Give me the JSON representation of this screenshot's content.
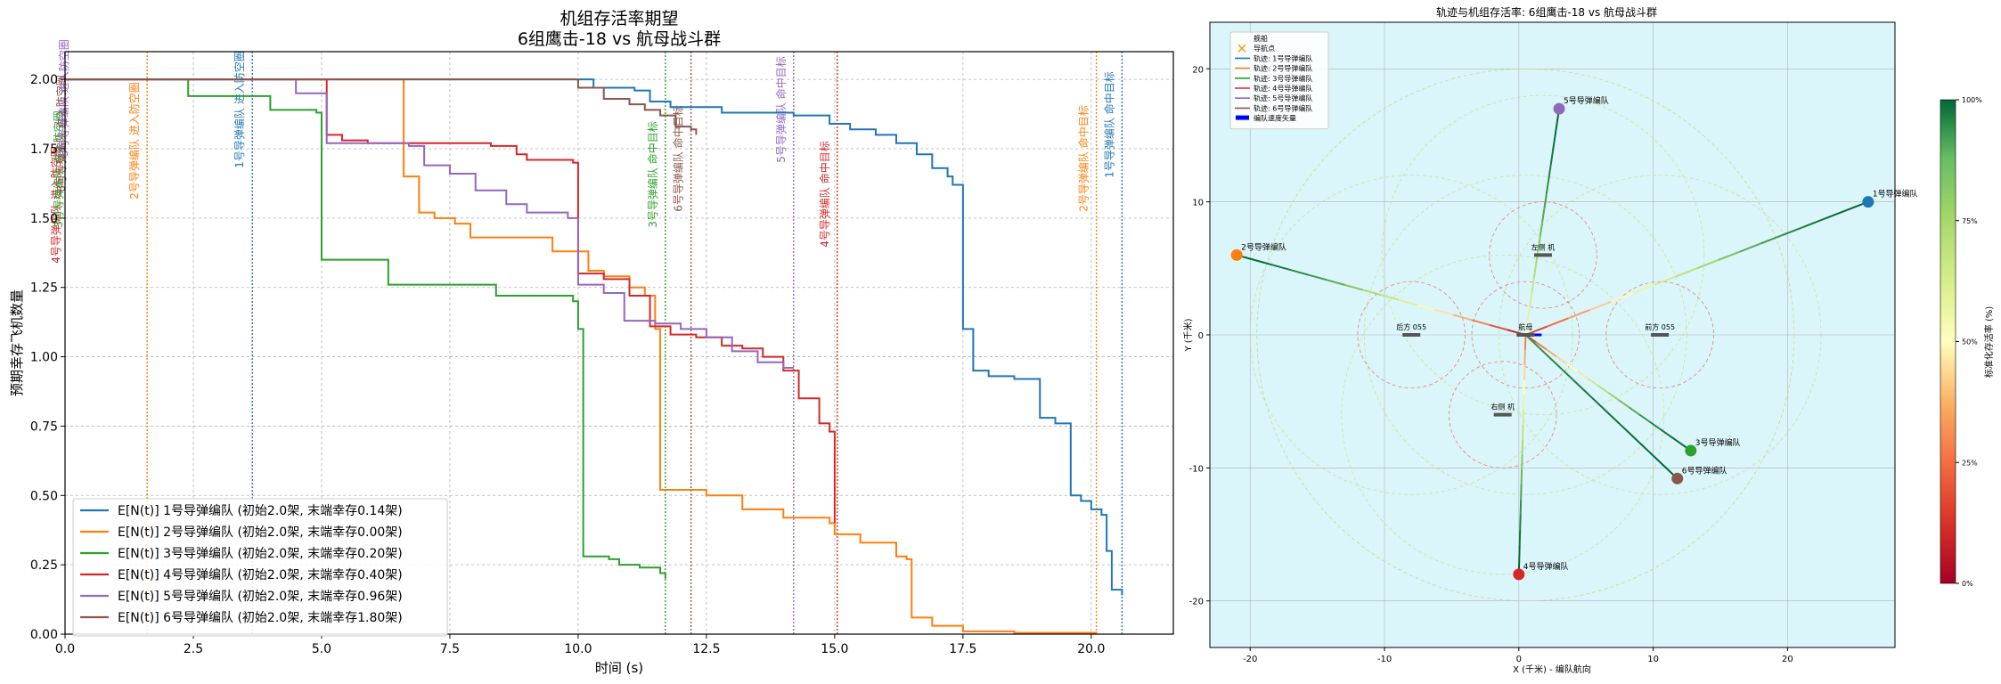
{
  "chart_data": [
    {
      "type": "line",
      "title": "机组存活率期望",
      "subtitle": "6组鹰击-18 vs 航母战斗群",
      "xlabel": "时间 (s)",
      "ylabel": "预期幸存飞机数量",
      "xlim": [
        0,
        21.6
      ],
      "ylim": [
        0,
        2.1
      ],
      "xticks": [
        0,
        2.5,
        5,
        7.5,
        10,
        12.5,
        15,
        17.5,
        20
      ],
      "yticks": [
        0,
        0.25,
        0.5,
        0.75,
        1.0,
        1.25,
        1.5,
        1.75,
        2.0
      ],
      "grid": true,
      "legend_position": "lower-left",
      "series": [
        {
          "name": "E[N(t)] 1号导弹编队 (初始2.0架, 末端幸存0.14架)",
          "color": "#1f77b4",
          "points": [
            [
              0,
              2.0
            ],
            [
              10.1,
              2.0
            ],
            [
              10.3,
              1.97
            ],
            [
              11.1,
              1.96
            ],
            [
              11.4,
              1.92
            ],
            [
              11.8,
              1.9
            ],
            [
              12.8,
              1.88
            ],
            [
              14.2,
              1.87
            ],
            [
              14.9,
              1.84
            ],
            [
              15.3,
              1.82
            ],
            [
              15.8,
              1.8
            ],
            [
              16.2,
              1.77
            ],
            [
              16.6,
              1.73
            ],
            [
              16.9,
              1.68
            ],
            [
              17.2,
              1.65
            ],
            [
              17.3,
              1.62
            ],
            [
              17.5,
              1.1
            ],
            [
              17.7,
              0.95
            ],
            [
              18.0,
              0.93
            ],
            [
              18.5,
              0.92
            ],
            [
              19.0,
              0.78
            ],
            [
              19.3,
              0.76
            ],
            [
              19.6,
              0.5
            ],
            [
              19.8,
              0.48
            ],
            [
              20.0,
              0.45
            ],
            [
              20.2,
              0.43
            ],
            [
              20.3,
              0.3
            ],
            [
              20.4,
              0.16
            ],
            [
              20.6,
              0.14
            ]
          ]
        },
        {
          "name": "E[N(t)] 2号导弹编队 (初始2.0架, 末端幸存0.00架)",
          "color": "#ff7f0e",
          "points": [
            [
              0,
              2.0
            ],
            [
              6.5,
              2.0
            ],
            [
              6.6,
              1.65
            ],
            [
              6.9,
              1.52
            ],
            [
              7.2,
              1.5
            ],
            [
              7.6,
              1.48
            ],
            [
              7.9,
              1.43
            ],
            [
              9.0,
              1.43
            ],
            [
              9.5,
              1.38
            ],
            [
              10.2,
              1.31
            ],
            [
              10.5,
              1.29
            ],
            [
              11.0,
              1.25
            ],
            [
              11.3,
              1.22
            ],
            [
              11.5,
              1.1
            ],
            [
              11.6,
              0.52
            ],
            [
              12.5,
              0.5
            ],
            [
              13.2,
              0.45
            ],
            [
              14.0,
              0.42
            ],
            [
              14.9,
              0.4
            ],
            [
              15.0,
              0.36
            ],
            [
              15.5,
              0.33
            ],
            [
              16.2,
              0.28
            ],
            [
              16.4,
              0.27
            ],
            [
              16.5,
              0.06
            ],
            [
              16.9,
              0.03
            ],
            [
              17.5,
              0.01
            ],
            [
              18.5,
              0.005
            ],
            [
              20.1,
              0.0
            ]
          ]
        },
        {
          "name": "E[N(t)] 3号导弹编队 (初始2.0架, 末端幸存0.20架)",
          "color": "#2ca02c",
          "points": [
            [
              0,
              2.0
            ],
            [
              2.3,
              2.0
            ],
            [
              2.4,
              1.94
            ],
            [
              3.6,
              1.94
            ],
            [
              4.0,
              1.89
            ],
            [
              4.9,
              1.88
            ],
            [
              5.0,
              1.35
            ],
            [
              6.1,
              1.35
            ],
            [
              6.3,
              1.26
            ],
            [
              8.0,
              1.26
            ],
            [
              8.4,
              1.22
            ],
            [
              9.9,
              1.2
            ],
            [
              10.0,
              1.1
            ],
            [
              10.1,
              0.28
            ],
            [
              10.6,
              0.27
            ],
            [
              10.8,
              0.25
            ],
            [
              11.2,
              0.24
            ],
            [
              11.6,
              0.22
            ],
            [
              11.7,
              0.2
            ]
          ]
        },
        {
          "name": "E[N(t)] 4号导弹编队 (初始2.0架, 末端幸存0.40架)",
          "color": "#d62728",
          "points": [
            [
              0,
              2.0
            ],
            [
              5.0,
              2.0
            ],
            [
              5.1,
              1.8
            ],
            [
              5.4,
              1.78
            ],
            [
              5.9,
              1.77
            ],
            [
              7.3,
              1.77
            ],
            [
              8.3,
              1.76
            ],
            [
              8.8,
              1.73
            ],
            [
              9.0,
              1.71
            ],
            [
              9.9,
              1.7
            ],
            [
              10.0,
              1.3
            ],
            [
              10.5,
              1.28
            ],
            [
              11.0,
              1.22
            ],
            [
              11.4,
              1.11
            ],
            [
              11.8,
              1.08
            ],
            [
              12.3,
              1.07
            ],
            [
              12.8,
              1.04
            ],
            [
              13.2,
              1.03
            ],
            [
              13.6,
              1.0
            ],
            [
              14.0,
              0.95
            ],
            [
              14.3,
              0.85
            ],
            [
              14.7,
              0.76
            ],
            [
              14.9,
              0.73
            ],
            [
              15.0,
              0.4
            ]
          ]
        },
        {
          "name": "E[N(t)] 5号导弹编队 (初始2.0架, 末端幸存0.96架)",
          "color": "#9467bd",
          "points": [
            [
              0,
              2.0
            ],
            [
              4.4,
              2.0
            ],
            [
              4.5,
              1.95
            ],
            [
              5.0,
              1.95
            ],
            [
              5.1,
              1.77
            ],
            [
              6.7,
              1.76
            ],
            [
              7.0,
              1.69
            ],
            [
              7.5,
              1.66
            ],
            [
              8.0,
              1.6
            ],
            [
              8.6,
              1.55
            ],
            [
              9.0,
              1.52
            ],
            [
              9.8,
              1.5
            ],
            [
              10.0,
              1.26
            ],
            [
              10.5,
              1.23
            ],
            [
              10.9,
              1.13
            ],
            [
              11.5,
              1.12
            ],
            [
              12.0,
              1.1
            ],
            [
              12.5,
              1.07
            ],
            [
              13.0,
              1.02
            ],
            [
              13.5,
              0.98
            ],
            [
              14.0,
              0.96
            ],
            [
              14.2,
              0.96
            ]
          ]
        },
        {
          "name": "E[N(t)] 6号导弹编队 (初始2.0架, 末端幸存1.80架)",
          "color": "#8c564b",
          "points": [
            [
              0,
              2.0
            ],
            [
              9.9,
              2.0
            ],
            [
              10.0,
              1.97
            ],
            [
              10.5,
              1.93
            ],
            [
              11.0,
              1.91
            ],
            [
              11.3,
              1.89
            ],
            [
              11.6,
              1.87
            ],
            [
              11.9,
              1.83
            ],
            [
              12.2,
              1.82
            ],
            [
              12.3,
              1.8
            ]
          ]
        }
      ],
      "event_lines": [
        {
          "x": 1.6,
          "label": "2号导弹编队 进入防空圈",
          "color": "#ff7f0e"
        },
        {
          "x": 3.65,
          "label": "1号导弹编队 进入防空圈",
          "color": "#1f77b4"
        },
        {
          "x": 11.7,
          "label": "3号导弹编队 命中目标",
          "color": "#2ca02c"
        },
        {
          "x": 12.2,
          "label": "6号导弹编队 命中目标",
          "color": "#8c564b"
        },
        {
          "x": 14.2,
          "label": "5号导弹编队 命中目标",
          "color": "#9467bd"
        },
        {
          "x": 15.05,
          "label": "4号导弹编队 命中目标",
          "color": "#d62728"
        },
        {
          "x": 20.1,
          "label": "2号导弹编队 命中目标",
          "color": "#ff7f0e"
        },
        {
          "x": 20.6,
          "label": "1号导弹编队 命中目标",
          "color": "#1f77b4"
        }
      ],
      "stacked_labels_x0": [
        {
          "text": "4号导弹编队 进入防空圈",
          "color": "#d62728"
        },
        {
          "text": "3号导弹编队 进入防空圈",
          "color": "#2ca02c"
        },
        {
          "text": "6号导弹编队 进入防空圈",
          "color": "#8c564b"
        },
        {
          "text": "5号导弹编队 进入防空圈",
          "color": "#9467bd"
        }
      ]
    },
    {
      "type": "scatter",
      "title": "轨迹与机组存活率: 6组鹰击-18 vs 航母战斗群",
      "xlabel": "X (千米) - 编队航向",
      "ylabel": "Y (千米)",
      "xlim": [
        -23,
        28
      ],
      "ylim": [
        -23.5,
        23.5
      ],
      "xticks": [
        -20,
        -10,
        0,
        10,
        20
      ],
      "yticks": [
        -20,
        -10,
        0,
        10,
        20
      ],
      "background": "#dbf6fa",
      "legend_position": "top-left",
      "legend": [
        {
          "label": "舰船",
          "kind": "none"
        },
        {
          "label": "导航点",
          "kind": "x",
          "color": "#ff9900"
        },
        {
          "label": "轨迹: 1号导弹编队",
          "kind": "line",
          "color": "#1f77b4"
        },
        {
          "label": "轨迹: 2号导弹编队",
          "kind": "line",
          "color": "#ff7f0e"
        },
        {
          "label": "轨迹: 3号导弹编队",
          "kind": "line",
          "color": "#2ca02c"
        },
        {
          "label": "轨迹: 4号导弹编队",
          "kind": "line",
          "color": "#d62728"
        },
        {
          "label": "轨迹: 5号导弹编队",
          "kind": "line",
          "color": "#9467bd"
        },
        {
          "label": "轨迹: 6号导弹编队",
          "kind": "line",
          "color": "#8c564b"
        },
        {
          "label": "编队速度矢量",
          "kind": "box",
          "color": "#0000ff"
        }
      ],
      "ships": [
        {
          "label": "航母",
          "x": 0.5,
          "y": 0
        },
        {
          "label": "左侧 机",
          "x": 1.8,
          "y": 6
        },
        {
          "label": "后方 055",
          "x": -8,
          "y": 0
        },
        {
          "label": "前方 055",
          "x": 10.5,
          "y": 0
        },
        {
          "label": "右侧 机",
          "x": -1.2,
          "y": -6
        }
      ],
      "formations": [
        {
          "label": "1号导弹编队",
          "color": "#1f77b4",
          "start": [
            26,
            10
          ],
          "end": [
            0.5,
            0
          ],
          "survival": 0.07
        },
        {
          "label": "2号导弹编队",
          "color": "#ff7f0e",
          "start": [
            -21,
            6
          ],
          "end": [
            0.5,
            0
          ],
          "survival": 0.0
        },
        {
          "label": "3号导弹编队",
          "color": "#2ca02c",
          "start": [
            12.8,
            -8.7
          ],
          "end": [
            0.5,
            0
          ],
          "survival": 0.1
        },
        {
          "label": "4号导弹编队",
          "color": "#d62728",
          "start": [
            0,
            -18
          ],
          "end": [
            0.5,
            0
          ],
          "survival": 0.2
        },
        {
          "label": "5号导弹编队",
          "color": "#9467bd",
          "start": [
            3,
            17
          ],
          "end": [
            0.5,
            0
          ],
          "survival": 0.48
        },
        {
          "label": "6号导弹编队",
          "color": "#8c564b",
          "start": [
            11.8,
            -10.8
          ],
          "end": [
            0.5,
            0
          ],
          "survival": 0.9
        }
      ],
      "colorbar": {
        "label": "标准化存活率 (%)",
        "ticks": [
          "0%",
          "25%",
          "50%",
          "75%",
          "100%"
        ]
      }
    }
  ]
}
